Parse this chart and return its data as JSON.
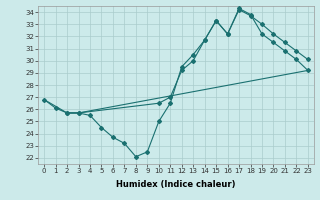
{
  "xlabel": "Humidex (Indice chaleur)",
  "bg_color": "#cceaea",
  "line_color": "#1a7070",
  "grid_color": "#aacccc",
  "xlim": [
    -0.5,
    23.5
  ],
  "ylim": [
    21.5,
    34.5
  ],
  "xticks": [
    0,
    1,
    2,
    3,
    4,
    5,
    6,
    7,
    8,
    9,
    10,
    11,
    12,
    13,
    14,
    15,
    16,
    17,
    18,
    19,
    20,
    21,
    22,
    23
  ],
  "yticks": [
    22,
    23,
    24,
    25,
    26,
    27,
    28,
    29,
    30,
    31,
    32,
    33,
    34
  ],
  "line1_x": [
    0,
    1,
    2,
    3,
    4,
    5,
    6,
    7,
    8,
    9,
    10,
    11,
    12,
    13,
    14,
    15,
    16,
    17,
    18,
    19,
    20,
    21,
    22,
    23
  ],
  "line1_y": [
    26.8,
    26.1,
    25.7,
    25.7,
    25.5,
    24.5,
    23.7,
    23.2,
    22.1,
    22.5,
    25.0,
    26.5,
    29.5,
    30.5,
    31.7,
    33.3,
    32.2,
    34.2,
    33.7,
    33.0,
    32.2,
    31.5,
    30.8,
    30.1
  ],
  "line2_x": [
    0,
    2,
    3,
    23
  ],
  "line2_y": [
    26.8,
    25.7,
    25.7,
    29.2
  ],
  "line3_x": [
    2,
    3,
    10,
    11,
    12,
    13,
    14,
    15,
    16,
    17,
    18,
    19,
    20,
    21,
    22,
    23
  ],
  "line3_y": [
    25.7,
    25.7,
    26.5,
    27.0,
    29.2,
    30.0,
    31.7,
    33.3,
    32.2,
    34.3,
    33.8,
    32.2,
    31.5,
    30.8,
    30.1,
    29.2
  ],
  "title_fontsize": 6,
  "tick_fontsize": 5,
  "xlabel_fontsize": 6
}
